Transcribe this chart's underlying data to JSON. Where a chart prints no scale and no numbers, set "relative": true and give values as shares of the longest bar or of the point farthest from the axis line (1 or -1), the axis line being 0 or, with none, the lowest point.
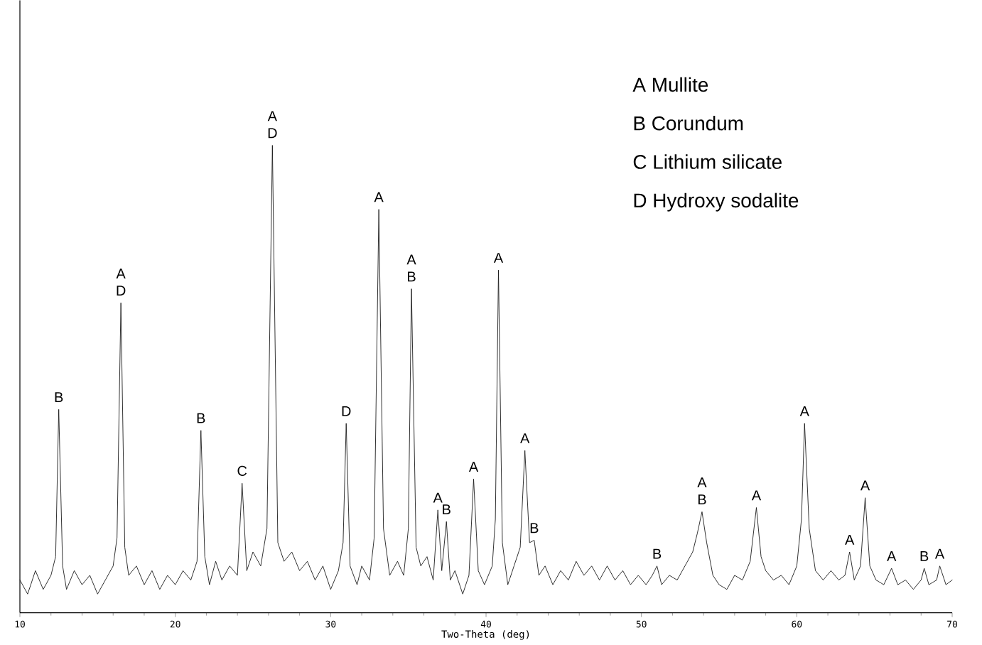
{
  "chart_data": {
    "type": "line",
    "relative": true,
    "xlabel": "Two-Theta (deg)",
    "xlim": [
      10,
      70
    ],
    "xticks": [
      10,
      20,
      30,
      40,
      50,
      60,
      70
    ],
    "series": [
      {
        "color": "#1a1a1a",
        "x": [
          10.0,
          10.5,
          11.0,
          11.5,
          12.0,
          12.3,
          12.5,
          12.75,
          13.0,
          13.5,
          14.0,
          14.5,
          15.0,
          15.5,
          16.0,
          16.25,
          16.5,
          16.75,
          17.0,
          17.5,
          18.0,
          18.5,
          19.0,
          19.5,
          20.0,
          20.5,
          21.0,
          21.4,
          21.65,
          21.9,
          22.2,
          22.6,
          23.0,
          23.5,
          24.0,
          24.3,
          24.6,
          25.0,
          25.5,
          25.9,
          26.25,
          26.6,
          27.0,
          27.5,
          28.0,
          28.5,
          29.0,
          29.5,
          30.0,
          30.5,
          30.8,
          31.0,
          31.25,
          31.7,
          32.0,
          32.5,
          32.8,
          33.1,
          33.4,
          33.8,
          34.3,
          34.7,
          35.0,
          35.2,
          35.5,
          35.8,
          36.2,
          36.6,
          36.9,
          37.15,
          37.45,
          37.7,
          38.0,
          38.5,
          38.9,
          39.2,
          39.5,
          39.9,
          40.4,
          40.6,
          40.8,
          41.05,
          41.4,
          41.8,
          42.2,
          42.5,
          42.8,
          43.1,
          43.4,
          43.8,
          44.3,
          44.8,
          45.3,
          45.8,
          46.3,
          46.8,
          47.3,
          47.8,
          48.3,
          48.8,
          49.3,
          49.8,
          50.3,
          50.7,
          51.0,
          51.3,
          51.8,
          52.3,
          52.8,
          53.3,
          53.6,
          53.9,
          54.2,
          54.6,
          55.0,
          55.5,
          56.0,
          56.5,
          57.0,
          57.4,
          57.7,
          58.0,
          58.5,
          59.0,
          59.5,
          60.0,
          60.3,
          60.5,
          60.8,
          61.2,
          61.7,
          62.2,
          62.7,
          63.1,
          63.4,
          63.7,
          64.1,
          64.4,
          64.7,
          65.1,
          65.6,
          66.1,
          66.5,
          67.0,
          67.5,
          68.0,
          68.2,
          68.5,
          69.0,
          69.2,
          69.6,
          70.0
        ],
        "values": [
          0.07,
          0.04,
          0.09,
          0.05,
          0.08,
          0.12,
          0.435,
          0.1,
          0.05,
          0.09,
          0.06,
          0.08,
          0.04,
          0.07,
          0.1,
          0.16,
          0.663,
          0.14,
          0.08,
          0.1,
          0.06,
          0.09,
          0.05,
          0.08,
          0.06,
          0.09,
          0.07,
          0.11,
          0.39,
          0.12,
          0.06,
          0.11,
          0.07,
          0.1,
          0.08,
          0.277,
          0.09,
          0.13,
          0.1,
          0.18,
          1.0,
          0.15,
          0.11,
          0.13,
          0.09,
          0.11,
          0.07,
          0.1,
          0.05,
          0.09,
          0.15,
          0.405,
          0.1,
          0.06,
          0.1,
          0.07,
          0.16,
          0.863,
          0.18,
          0.08,
          0.11,
          0.08,
          0.18,
          0.693,
          0.14,
          0.1,
          0.12,
          0.07,
          0.22,
          0.09,
          0.195,
          0.07,
          0.09,
          0.04,
          0.08,
          0.286,
          0.09,
          0.06,
          0.1,
          0.2,
          0.733,
          0.15,
          0.06,
          0.1,
          0.14,
          0.347,
          0.15,
          0.155,
          0.08,
          0.1,
          0.06,
          0.09,
          0.07,
          0.11,
          0.08,
          0.1,
          0.07,
          0.1,
          0.07,
          0.09,
          0.06,
          0.08,
          0.06,
          0.08,
          0.1,
          0.06,
          0.08,
          0.07,
          0.1,
          0.13,
          0.17,
          0.216,
          0.15,
          0.08,
          0.06,
          0.05,
          0.08,
          0.07,
          0.11,
          0.225,
          0.12,
          0.09,
          0.07,
          0.08,
          0.06,
          0.1,
          0.2,
          0.405,
          0.18,
          0.09,
          0.07,
          0.09,
          0.07,
          0.08,
          0.13,
          0.07,
          0.1,
          0.246,
          0.1,
          0.07,
          0.06,
          0.095,
          0.06,
          0.07,
          0.05,
          0.07,
          0.095,
          0.06,
          0.07,
          0.1,
          0.06,
          0.07
        ]
      }
    ],
    "annotations": [
      "A   Mullite",
      "B   Corundum",
      "C   Lithium silicate",
      "D   Hydroxy sodalite",
      {
        "text": "B",
        "x": 12.5,
        "y": 0.435
      },
      {
        "text": "A",
        "x": 16.5,
        "y": 0.663
      },
      {
        "text": "D",
        "x": 16.5,
        "y": 0.663
      },
      {
        "text": "B",
        "x": 21.65,
        "y": 0.39
      },
      {
        "text": "C",
        "x": 24.3,
        "y": 0.277
      },
      {
        "text": "A",
        "x": 26.25,
        "y": 1.0
      },
      {
        "text": "D",
        "x": 26.25,
        "y": 1.0
      },
      {
        "text": "D",
        "x": 31.0,
        "y": 0.405
      },
      {
        "text": "A",
        "x": 33.1,
        "y": 0.863
      },
      {
        "text": "A",
        "x": 35.2,
        "y": 0.693
      },
      {
        "text": "B",
        "x": 35.2,
        "y": 0.693
      },
      {
        "text": "A",
        "x": 36.9,
        "y": 0.22
      },
      {
        "text": "B",
        "x": 37.45,
        "y": 0.195
      },
      {
        "text": "A",
        "x": 39.2,
        "y": 0.286
      },
      {
        "text": "A",
        "x": 40.8,
        "y": 0.733
      },
      {
        "text": "A",
        "x": 42.5,
        "y": 0.347
      },
      {
        "text": "B",
        "x": 43.1,
        "y": 0.155
      },
      {
        "text": "B",
        "x": 51.0,
        "y": 0.1
      },
      {
        "text": "A",
        "x": 53.9,
        "y": 0.216
      },
      {
        "text": "B",
        "x": 53.9,
        "y": 0.216
      },
      {
        "text": "A",
        "x": 57.4,
        "y": 0.225
      },
      {
        "text": "A",
        "x": 60.5,
        "y": 0.405
      },
      {
        "text": "A",
        "x": 63.4,
        "y": 0.13
      },
      {
        "text": "A",
        "x": 64.4,
        "y": 0.246
      },
      {
        "text": "A",
        "x": 66.1,
        "y": 0.095
      },
      {
        "text": "B",
        "x": 68.2,
        "y": 0.095
      },
      {
        "text": "A",
        "x": 69.2,
        "y": 0.1
      }
    ]
  }
}
